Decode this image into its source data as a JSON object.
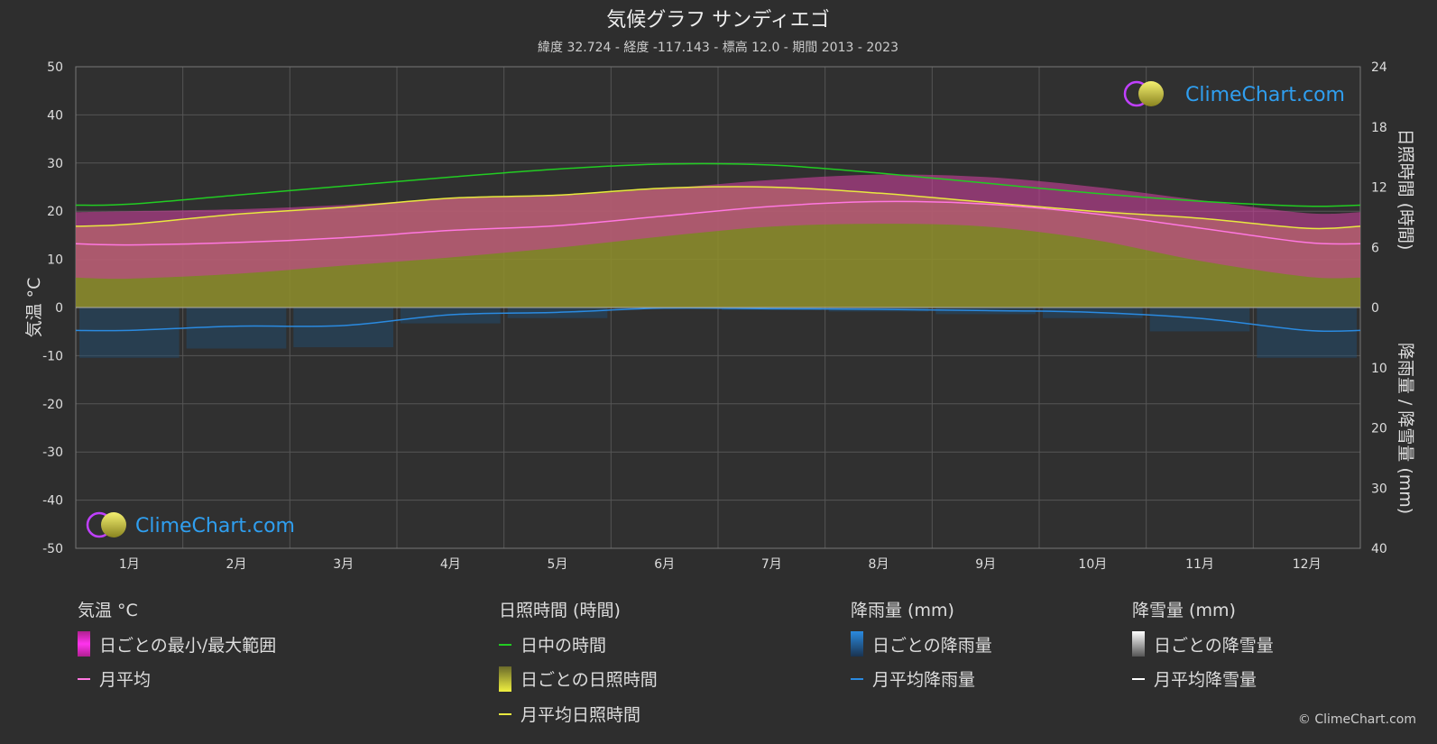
{
  "title": "気候グラフ サンディエゴ",
  "subtitle": "緯度 32.724 - 経度 -117.143 - 標高 12.0 - 期間 2013 - 2023",
  "copyright": "© ClimeChart.com",
  "logo_text": "ClimeChart.com",
  "colors": {
    "background": "#2e2e2e",
    "grid": "#5a5a5a",
    "daylight": "#22cc22",
    "sunshine_avg": "#e8e840",
    "sunshine_fill": "#8f8f2c",
    "temp_band": "#c8409a",
    "temp_avg": "#ff77e0",
    "rain_avg": "#2a8ae0",
    "rain_bar": "#1f4f78",
    "snow_avg": "#ffffff",
    "logo_blue": "#2f9ff0"
  },
  "chart_data": {
    "type": "line",
    "categories": [
      "1月",
      "2月",
      "3月",
      "4月",
      "5月",
      "6月",
      "7月",
      "8月",
      "9月",
      "10月",
      "11月",
      "12月"
    ],
    "y_left": {
      "label": "気温 °C",
      "range": [
        -50,
        50
      ],
      "ticks": [
        50,
        40,
        30,
        20,
        10,
        0,
        -10,
        -20,
        -30,
        -40,
        -50
      ]
    },
    "y_right_top": {
      "label": "日照時間 (時間)",
      "range": [
        0,
        24
      ],
      "ticks": [
        24,
        18,
        12,
        6,
        0
      ]
    },
    "y_right_bottom": {
      "label": "降雨量 / 降雪量 (mm)",
      "range": [
        0,
        40
      ],
      "ticks": [
        0,
        10,
        20,
        30,
        40
      ]
    },
    "series": {
      "daylight_hours": [
        10.3,
        11.2,
        12.1,
        13.0,
        13.8,
        14.3,
        14.2,
        13.4,
        12.4,
        11.4,
        10.6,
        10.1
      ],
      "sunshine_hours": [
        8.3,
        9.3,
        10.0,
        10.9,
        11.2,
        11.9,
        12.0,
        11.4,
        10.5,
        9.6,
        8.9,
        7.9
      ],
      "temp_max": [
        20.0,
        20.4,
        21.3,
        22.6,
        23.2,
        24.7,
        26.5,
        27.6,
        27.1,
        25.1,
        22.3,
        19.6
      ],
      "temp_min": [
        6.0,
        7.0,
        8.7,
        10.4,
        12.4,
        14.8,
        16.8,
        17.4,
        16.8,
        14.1,
        9.7,
        6.4
      ],
      "temp_avg": [
        13.0,
        13.5,
        14.5,
        16.0,
        17.0,
        19.0,
        21.0,
        22.0,
        21.5,
        19.5,
        16.5,
        13.5
      ],
      "rain_mm": [
        3.8,
        3.1,
        3.0,
        1.2,
        0.8,
        0.1,
        0.2,
        0.3,
        0.5,
        0.8,
        1.8,
        3.8
      ],
      "snow_mm": [
        0,
        0,
        0,
        0,
        0,
        0,
        0,
        0,
        0,
        0,
        0,
        0
      ]
    }
  },
  "legend": {
    "temperature": {
      "title": "気温 °C",
      "range_label": "日ごとの最小/最大範囲",
      "avg_label": "月平均"
    },
    "sunshine": {
      "title": "日照時間 (時間)",
      "daylight_label": "日中の時間",
      "daily_label": "日ごとの日照時間",
      "avg_label": "月平均日照時間"
    },
    "rain": {
      "title": "降雨量 (mm)",
      "daily_label": "日ごとの降雨量",
      "avg_label": "月平均降雨量"
    },
    "snow": {
      "title": "降雪量 (mm)",
      "daily_label": "日ごとの降雪量",
      "avg_label": "月平均降雪量"
    }
  }
}
